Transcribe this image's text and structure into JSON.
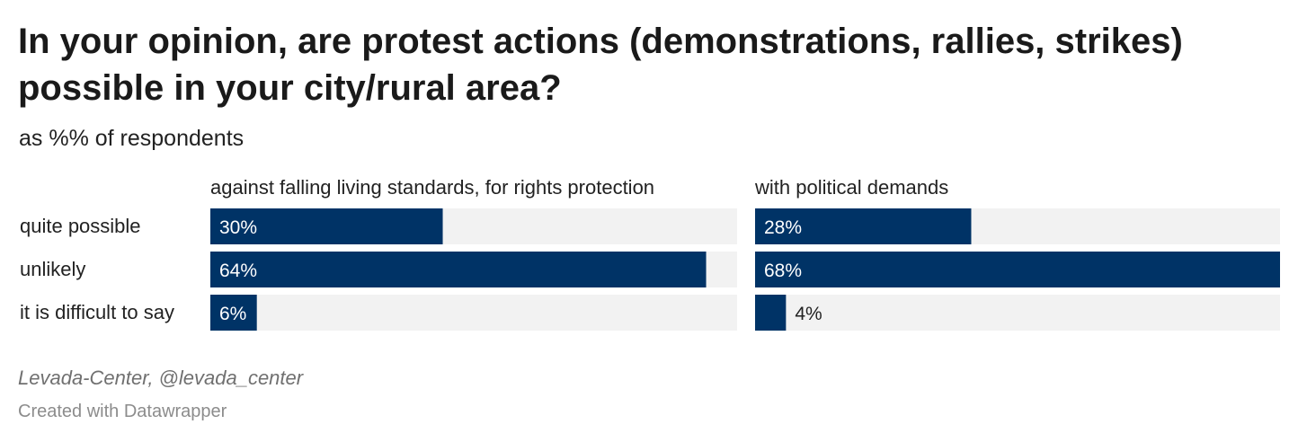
{
  "title": "In your opinion, are protest actions (demonstrations, rallies, strikes) possible in your city/rural area?",
  "subtitle": "as %% of respondents",
  "chart_data": {
    "type": "bar",
    "orientation": "horizontal",
    "categories": [
      "quite possible",
      "unlikely",
      "it is difficult to say"
    ],
    "series": [
      {
        "name": "against falling living standards, for rights protection",
        "values": [
          30,
          64,
          6
        ],
        "labels": [
          "30%",
          "64%",
          "6%"
        ]
      },
      {
        "name": "with political demands",
        "values": [
          28,
          68,
          4
        ],
        "labels": [
          "28%",
          "68%",
          "4%"
        ]
      }
    ],
    "xlim": [
      0,
      68
    ],
    "unit": "%",
    "grid": false,
    "colors": {
      "bar": "#003366",
      "track": "#f2f2f2",
      "label_inside": "#ffffff",
      "label_outside": "#222222"
    }
  },
  "footer": {
    "source": "Levada-Center, @levada_center",
    "credit": "Created with Datawrapper"
  }
}
